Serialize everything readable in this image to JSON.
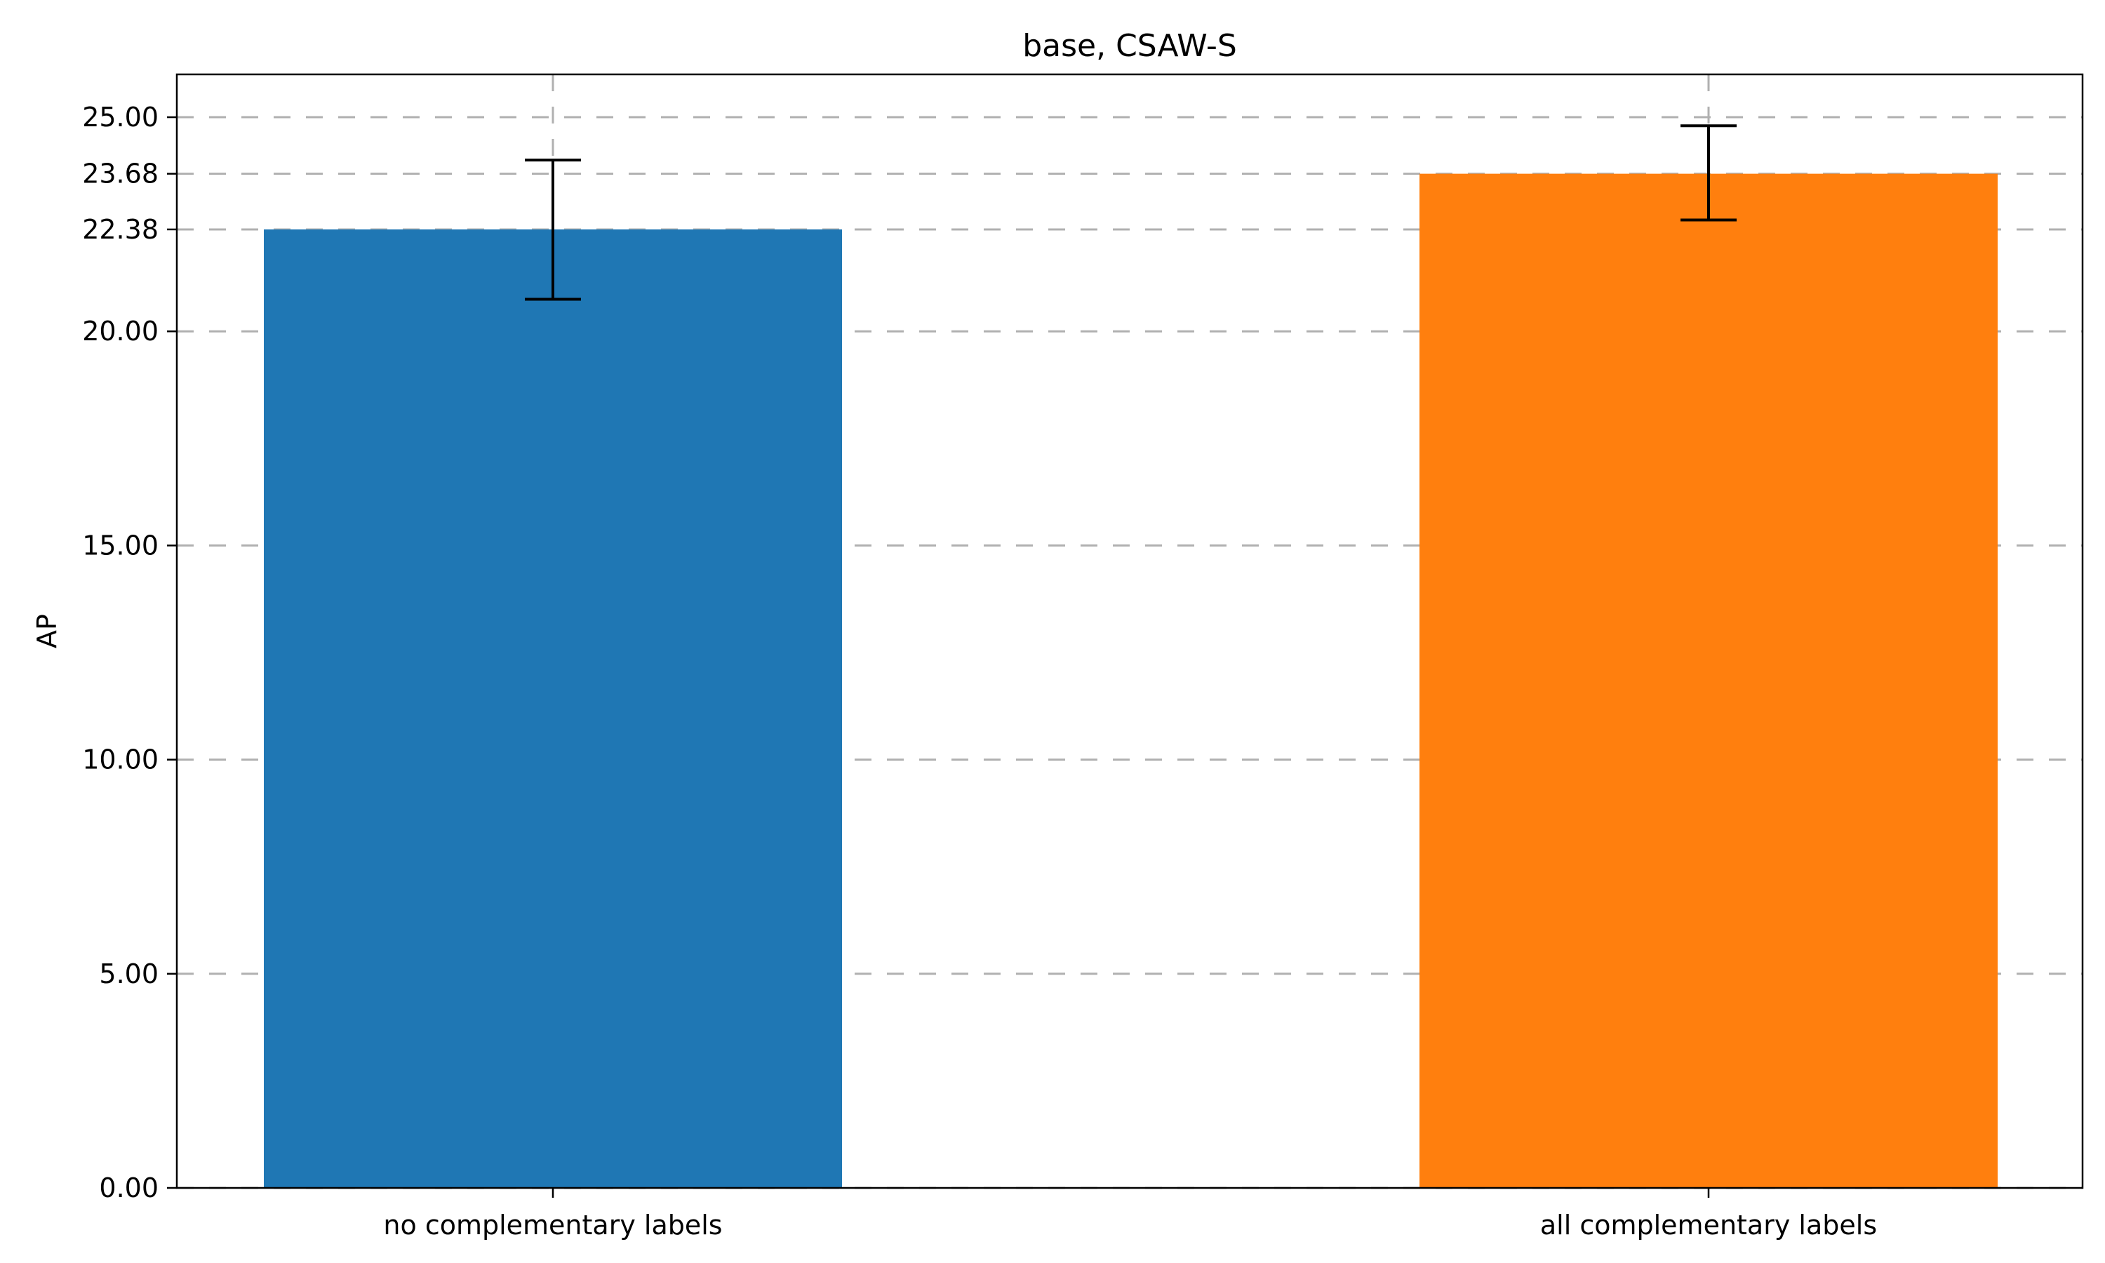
{
  "chart_data": {
    "type": "bar",
    "title": "base, CSAW-S",
    "xlabel": "",
    "ylabel": "AP",
    "categories": [
      "no complementary labels",
      "all complementary labels"
    ],
    "values": [
      22.38,
      23.68
    ],
    "error_low": [
      20.75,
      22.6
    ],
    "error_high": [
      24.0,
      24.8
    ],
    "colors": [
      "#1f77b4",
      "#ff7f0e"
    ],
    "ylim": [
      0,
      26
    ],
    "yticks": [
      0,
      5,
      10,
      15,
      20,
      22.38,
      23.68,
      25
    ],
    "ytick_labels": [
      "0.00",
      "5.00",
      "10.00",
      "15.00",
      "20.00",
      "22.38",
      "23.68",
      "25.00"
    ],
    "grid": true
  }
}
